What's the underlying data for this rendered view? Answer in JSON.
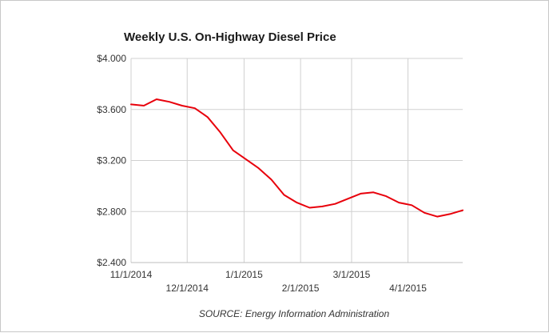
{
  "chart_data": {
    "type": "line",
    "title": "Weekly U.S. On-Highway Diesel Price",
    "source": "SOURCE: Energy Information Administration",
    "xlabel": "",
    "ylabel": "",
    "ylim": [
      2.4,
      4.0
    ],
    "y_ticks": [
      4.0,
      3.6,
      3.2,
      2.8,
      2.4
    ],
    "y_tick_labels": [
      "$4.000",
      "$3.600",
      "$3.200",
      "$2.800",
      "$2.400"
    ],
    "x_tick_labels": [
      "11/1/2014",
      "12/1/2014",
      "1/1/2015",
      "2/1/2015",
      "3/1/2015",
      "4/1/2015"
    ],
    "x_tick_weeks": [
      0,
      4.4,
      8.86,
      13.29,
      17.29,
      21.71
    ],
    "grid": true,
    "color": "#e8000b",
    "series": [
      {
        "name": "Diesel Price",
        "values": [
          3.64,
          3.63,
          3.68,
          3.66,
          3.63,
          3.61,
          3.54,
          3.42,
          3.28,
          3.21,
          3.14,
          3.05,
          2.93,
          2.87,
          2.83,
          2.84,
          2.86,
          2.9,
          2.94,
          2.95,
          2.92,
          2.87,
          2.85,
          2.79,
          2.76,
          2.78,
          2.81
        ]
      }
    ]
  }
}
